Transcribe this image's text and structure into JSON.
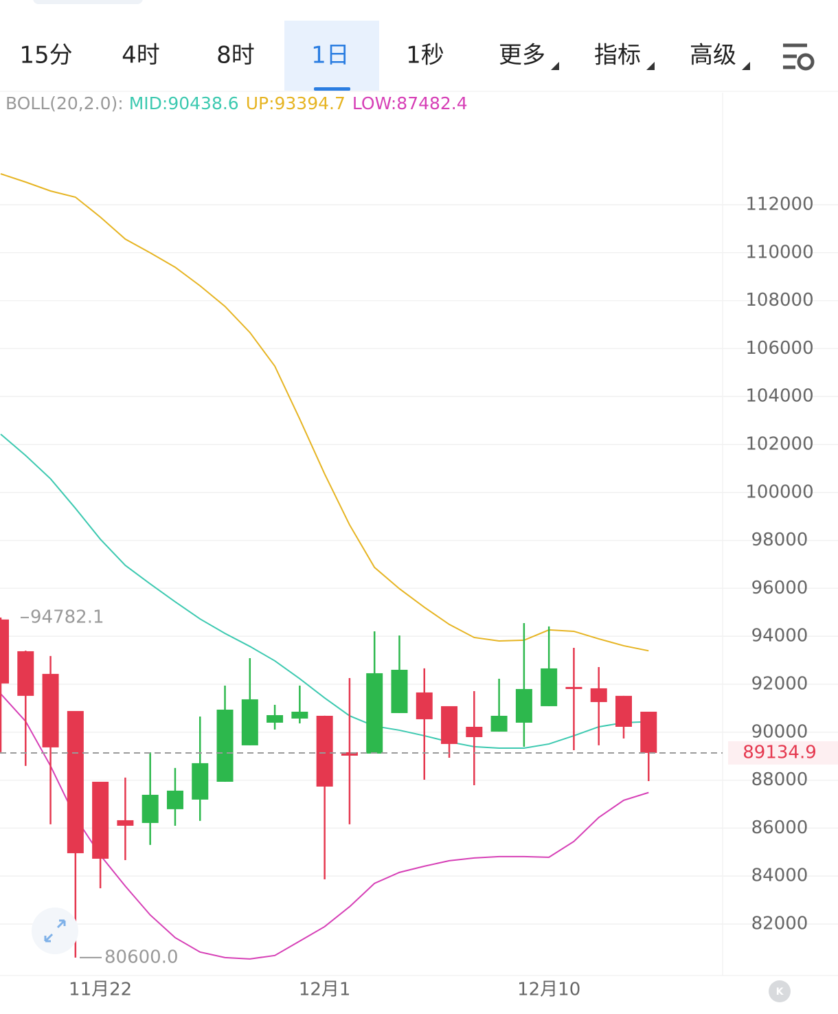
{
  "tabs": [
    "15分",
    "4时",
    "8时",
    "1日",
    "1秒",
    "更多",
    "指标",
    "高级"
  ],
  "active_tab": 3,
  "chart_data": {
    "type": "candlestick",
    "indicator_label": "BOLL(20,2.0):",
    "categories": [
      null,
      null,
      null,
      null,
      "11月22",
      null,
      null,
      null,
      null,
      null,
      null,
      null,
      null,
      "12月1",
      null,
      null,
      null,
      null,
      null,
      null,
      null,
      null,
      "12月10",
      null,
      null,
      null,
      null
    ],
    "open": [
      94700,
      93376,
      92431,
      90883,
      87932,
      86327,
      86213,
      86788,
      87188,
      87932,
      89451,
      90396,
      90568,
      90683,
      89164,
      89107,
      90797,
      91657,
      91084,
      90224,
      90024,
      90396,
      91084,
      91886,
      91829,
      91515,
      90854
    ],
    "high": [
      94782.1,
      93400,
      93176,
      90883,
      87932,
      88105,
      89164,
      88507,
      90654,
      91943,
      93089,
      91141,
      91943,
      90683,
      92258,
      94207,
      94035,
      92660,
      91084,
      91714,
      92230,
      94551,
      94408,
      93519,
      92717,
      91515,
      90854
    ],
    "low": [
      89166,
      88593,
      86157,
      80600,
      83490,
      84665,
      85297,
      86098,
      86299,
      87932,
      89451,
      90110,
      90367,
      83863,
      86157,
      89107,
      90797,
      88018,
      88934,
      87788,
      90024,
      89393,
      91084,
      89250,
      89451,
      89737,
      87960
    ],
    "close": [
      92031,
      91515,
      89366,
      84952,
      84722,
      86098,
      87388,
      87561,
      88707,
      90940,
      91370,
      90711,
      90854,
      87731,
      89021,
      92459,
      92602,
      90539,
      89508,
      89794,
      90683,
      91800,
      92660,
      91800,
      91256,
      90224,
      89134.9
    ],
    "up_color": "#2db84d",
    "down_color": "#e5384f",
    "series": [
      {
        "name": "MID:90438.6",
        "color": "#3cc9b0",
        "values": [
          102430,
          101542,
          100568,
          99336,
          98047,
          96958,
          96184,
          95440,
          94723,
          94121,
          93577,
          92975,
          92230,
          91428,
          90683,
          90253,
          90081,
          89852,
          89594,
          89394,
          89336,
          89336,
          89508,
          89852,
          90224,
          90396,
          90438.6
        ]
      },
      {
        "name": "UP:93394.7",
        "color": "#e6b422",
        "values": [
          113289,
          112945,
          112573,
          112315,
          111484,
          110567,
          109994,
          109393,
          108619,
          107760,
          106671,
          105267,
          103061,
          100768,
          98648,
          96872,
          95983,
          95210,
          94494,
          93949,
          93806,
          93835,
          94265,
          94207,
          93892,
          93606,
          93394.7
        ]
      },
      {
        "name": "LOW:87482.4",
        "color": "#d63fb6",
        "values": [
          91600,
          90454,
          88592,
          86443,
          84867,
          83578,
          82376,
          81430,
          80829,
          80600,
          80543,
          80686,
          81287,
          81889,
          82720,
          83694,
          84152,
          84410,
          84639,
          84754,
          84811,
          84811,
          84783,
          85441,
          86443,
          87160,
          87482.4
        ]
      }
    ],
    "last_price": 89134.9,
    "low_marker": {
      "value": 80600,
      "label": "80600.0"
    },
    "ylim": [
      79850,
      116670
    ],
    "yticks": [
      82000,
      84000,
      86000,
      88000,
      90000,
      92000,
      94000,
      96000,
      98000,
      100000,
      102000,
      104000,
      106000,
      108000,
      110000,
      112000
    ],
    "grid": true
  }
}
